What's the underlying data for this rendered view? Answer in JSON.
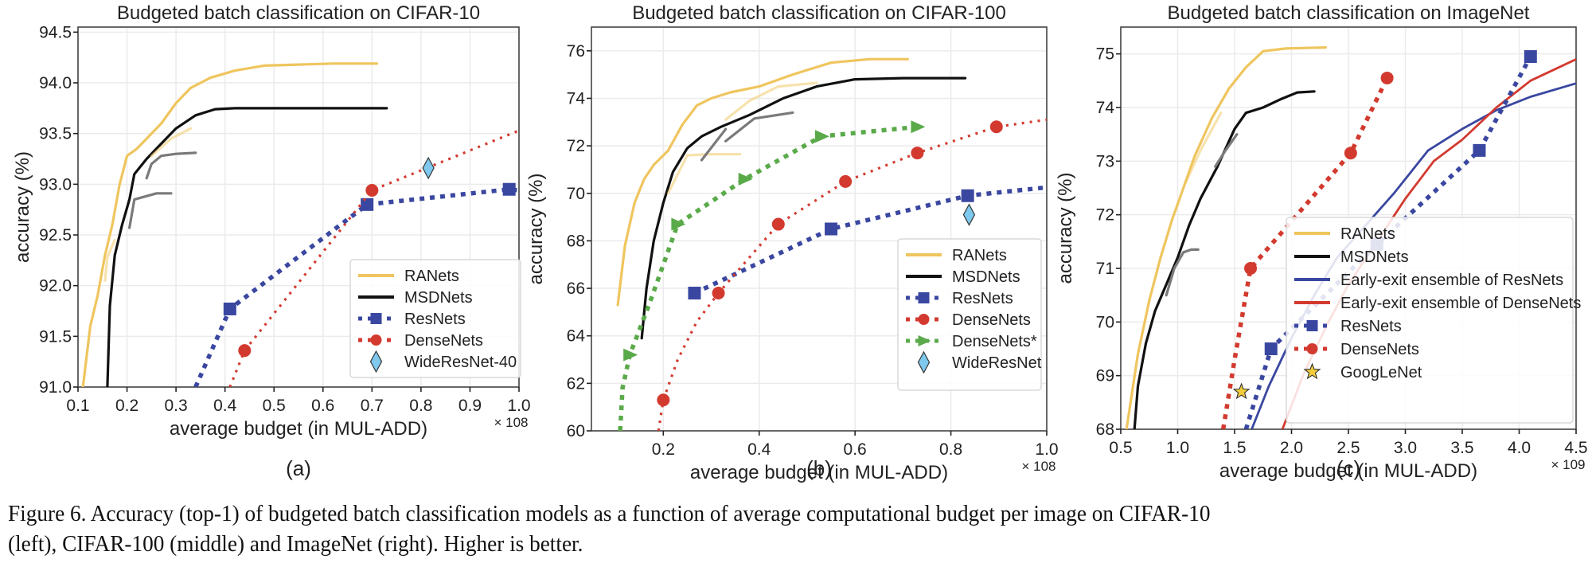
{
  "figure": {
    "caption_line1": "Figure 6. Accuracy (top-1) of budgeted batch classification models as a function of average computational budget per image on CIFAR-10",
    "caption_line2": "(left), CIFAR-100 (middle) and ImageNet (right). Higher is better."
  },
  "colors": {
    "ranets": "#efc55e",
    "msdnets": "#111111",
    "fragment_gray": "#7a7a7a",
    "resnets": "#3a47a0",
    "densenets": "#d33a2f",
    "densenets_star": "#5aaa4a",
    "wideresnet": "#7fc8ee",
    "googlenet": "#f2cc3a",
    "ee_resnets": "#3a47a0",
    "ee_densenets": "#d33a2f",
    "grid": "#ebebeb"
  },
  "chart_data": [
    {
      "type": "line",
      "panel_label": "(a)",
      "title": "Budgeted batch classification on CIFAR-10",
      "xlabel": "average budget (in MUL-ADD)",
      "xscale_note": "× 10^8",
      "ylabel": "accuracy (%)",
      "xlim": [
        0.1,
        1.0
      ],
      "ylim": [
        91.0,
        94.55
      ],
      "xticks": [
        0.1,
        0.2,
        0.3,
        0.4,
        0.5,
        0.6,
        0.7,
        0.8,
        0.9,
        1.0
      ],
      "xtick_labels": [
        "0.1",
        "0.2",
        "0.3",
        "0.4",
        "0.5",
        "0.6",
        "0.7",
        "0.8",
        "0.9",
        "1.0"
      ],
      "yticks": [
        91.0,
        91.5,
        92.0,
        92.5,
        93.0,
        93.5,
        94.0,
        94.5
      ],
      "ytick_labels": [
        "91.0",
        "91.5",
        "92.0",
        "92.5",
        "93.0",
        "93.5",
        "94.0",
        "94.5"
      ],
      "grid": true,
      "legend_position": "lower-right",
      "series": [
        {
          "name": "RANets",
          "style": "solid",
          "color_key": "ranets",
          "legend": true,
          "x": [
            0.11,
            0.125,
            0.14,
            0.155,
            0.17,
            0.185,
            0.2,
            0.22,
            0.24,
            0.27,
            0.3,
            0.33,
            0.37,
            0.42,
            0.48,
            0.55,
            0.62,
            0.71
          ],
          "y": [
            91.0,
            91.6,
            91.9,
            92.3,
            92.6,
            93.0,
            93.28,
            93.35,
            93.45,
            93.6,
            93.8,
            93.95,
            94.05,
            94.12,
            94.17,
            94.18,
            94.19,
            94.19
          ]
        },
        {
          "name": "MSDNets",
          "style": "solid",
          "color_key": "msdnets",
          "legend": true,
          "x": [
            0.16,
            0.165,
            0.175,
            0.19,
            0.205,
            0.215,
            0.24,
            0.27,
            0.3,
            0.34,
            0.38,
            0.42,
            0.48,
            0.55,
            0.65,
            0.73
          ],
          "y": [
            91.0,
            91.8,
            92.3,
            92.6,
            92.85,
            93.1,
            93.25,
            93.4,
            93.55,
            93.68,
            93.74,
            93.75,
            93.75,
            93.75,
            93.75,
            93.75
          ]
        },
        {
          "name": "RANets-sub1",
          "style": "solid",
          "color_key": "ranets",
          "legend": false,
          "faded": true,
          "x": [
            0.155,
            0.16,
            0.175
          ],
          "y": [
            92.05,
            92.28,
            92.45
          ]
        },
        {
          "name": "RANets-sub2",
          "style": "solid",
          "color_key": "ranets",
          "legend": false,
          "faded": true,
          "x": [
            0.25,
            0.29,
            0.33
          ],
          "y": [
            93.28,
            93.45,
            93.55
          ]
        },
        {
          "name": "MSDNets-sub1",
          "style": "solid",
          "color_key": "fragment_gray",
          "legend": false,
          "x": [
            0.205,
            0.215,
            0.23,
            0.26,
            0.29
          ],
          "y": [
            92.57,
            92.85,
            92.87,
            92.91,
            92.91
          ]
        },
        {
          "name": "MSDNets-sub2",
          "style": "solid",
          "color_key": "fragment_gray",
          "legend": false,
          "x": [
            0.24,
            0.25,
            0.27,
            0.3,
            0.34
          ],
          "y": [
            93.06,
            93.2,
            93.28,
            93.3,
            93.31
          ]
        },
        {
          "name": "ResNets",
          "style": "dotted-square",
          "color_key": "resnets",
          "legend": true,
          "x": [
            0.34,
            0.41,
            0.69,
            0.98,
            1.0
          ],
          "y": [
            91.0,
            91.77,
            92.8,
            92.95,
            92.94
          ],
          "markers_at": [
            1,
            2,
            3
          ]
        },
        {
          "name": "DenseNets",
          "style": "dotted-circle",
          "color_key": "densenets",
          "legend": true,
          "x": [
            0.41,
            0.44,
            0.7,
            1.0
          ],
          "y": [
            91.0,
            91.36,
            92.94,
            93.53
          ],
          "markers_at": [
            1,
            2
          ]
        },
        {
          "name": "WideResNet-40",
          "style": "marker-diamond",
          "color_key": "wideresnet",
          "legend": true,
          "x": [
            0.815
          ],
          "y": [
            93.16
          ]
        }
      ]
    },
    {
      "type": "line",
      "panel_label": "(b)",
      "title": "Budgeted batch classification on CIFAR-100",
      "xlabel": "average budget (in MUL-ADD)",
      "xscale_note": "× 10^8",
      "ylabel": "accuracy (%)",
      "xlim": [
        0.05,
        1.0
      ],
      "ylim": [
        60,
        77
      ],
      "xticks": [
        0.2,
        0.4,
        0.6,
        0.8,
        1.0
      ],
      "xtick_labels": [
        "0.2",
        "0.4",
        "0.6",
        "0.8",
        "1.0"
      ],
      "yticks": [
        60,
        62,
        64,
        66,
        68,
        70,
        72,
        74,
        76
      ],
      "ytick_labels": [
        "60",
        "62",
        "64",
        "66",
        "68",
        "70",
        "72",
        "74",
        "76"
      ],
      "grid": true,
      "legend_position": "lower-right",
      "series": [
        {
          "name": "RANets",
          "style": "solid",
          "color_key": "ranets",
          "legend": true,
          "x": [
            0.105,
            0.12,
            0.14,
            0.16,
            0.18,
            0.21,
            0.24,
            0.27,
            0.3,
            0.34,
            0.4,
            0.47,
            0.55,
            0.63,
            0.71
          ],
          "y": [
            65.3,
            67.8,
            69.6,
            70.6,
            71.2,
            71.8,
            72.9,
            73.7,
            74.0,
            74.25,
            74.5,
            75.0,
            75.5,
            75.65,
            75.65
          ]
        },
        {
          "name": "MSDNets",
          "style": "solid",
          "color_key": "msdnets",
          "legend": true,
          "x": [
            0.155,
            0.165,
            0.18,
            0.2,
            0.22,
            0.25,
            0.28,
            0.32,
            0.38,
            0.45,
            0.52,
            0.6,
            0.7,
            0.83
          ],
          "y": [
            63.9,
            66.0,
            68.0,
            69.6,
            70.9,
            71.9,
            72.4,
            72.8,
            73.3,
            74.0,
            74.5,
            74.8,
            74.85,
            74.85
          ]
        },
        {
          "name": "RANets-sub1",
          "style": "solid",
          "color_key": "ranets",
          "legend": false,
          "faded": true,
          "x": [
            0.21,
            0.25,
            0.3,
            0.36
          ],
          "y": [
            70.0,
            71.6,
            71.65,
            71.65
          ]
        },
        {
          "name": "RANets-sub2",
          "style": "solid",
          "color_key": "ranets",
          "legend": false,
          "faded": true,
          "x": [
            0.33,
            0.38,
            0.44,
            0.52
          ],
          "y": [
            73.1,
            73.9,
            74.5,
            74.65
          ]
        },
        {
          "name": "MSDNets-sub1",
          "style": "solid",
          "color_key": "fragment_gray",
          "legend": false,
          "x": [
            0.28,
            0.33
          ],
          "y": [
            71.4,
            72.7
          ]
        },
        {
          "name": "MSDNets-sub2",
          "style": "solid",
          "color_key": "fragment_gray",
          "legend": false,
          "x": [
            0.33,
            0.39,
            0.47
          ],
          "y": [
            72.2,
            73.15,
            73.4
          ]
        },
        {
          "name": "ResNets",
          "style": "dotted-square",
          "color_key": "resnets",
          "legend": true,
          "x": [
            0.265,
            0.35,
            0.55,
            0.835,
            1.0
          ],
          "y": [
            65.8,
            66.6,
            68.5,
            69.9,
            70.25
          ],
          "markers_at": [
            0,
            2,
            3
          ]
        },
        {
          "name": "DenseNets",
          "style": "dotted-circle",
          "color_key": "densenets",
          "legend": true,
          "x": [
            0.19,
            0.2,
            0.23,
            0.27,
            0.315,
            0.44,
            0.58,
            0.73,
            0.895,
            1.0
          ],
          "y": [
            60.0,
            61.3,
            63.0,
            64.6,
            65.8,
            68.7,
            70.5,
            71.7,
            72.8,
            73.1
          ],
          "markers_at": [
            1,
            4,
            5,
            6,
            7,
            8
          ]
        },
        {
          "name": "DenseNets*",
          "style": "dotted-triangle",
          "color_key": "densenets_star",
          "legend": true,
          "x": [
            0.11,
            0.115,
            0.13,
            0.17,
            0.23,
            0.37,
            0.53,
            0.73
          ],
          "y": [
            60.0,
            61.8,
            63.2,
            65.3,
            68.7,
            70.6,
            72.4,
            72.8
          ],
          "markers_at": [
            2,
            4,
            5,
            6,
            7
          ]
        },
        {
          "name": "WideResNet",
          "style": "marker-diamond",
          "color_key": "wideresnet",
          "legend": true,
          "x": [
            0.838
          ],
          "y": [
            69.1
          ]
        }
      ]
    },
    {
      "type": "line",
      "panel_label": "(c)",
      "title": "Budgeted batch classification on ImageNet",
      "xlabel": "average budget (in MUL-ADD)",
      "xscale_note": "× 10^9",
      "ylabel": "accuracy (%)",
      "xlim": [
        0.5,
        4.5
      ],
      "ylim": [
        68,
        75.5
      ],
      "xticks": [
        0.5,
        1.0,
        1.5,
        2.0,
        2.5,
        3.0,
        3.5,
        4.0,
        4.5
      ],
      "xtick_labels": [
        "0.5",
        "1.0",
        "1.5",
        "2.0",
        "2.5",
        "3.0",
        "3.5",
        "4.0",
        "4.5"
      ],
      "yticks": [
        68,
        69,
        70,
        71,
        72,
        73,
        74,
        75
      ],
      "ytick_labels": [
        "68",
        "69",
        "70",
        "71",
        "72",
        "73",
        "74",
        "75"
      ],
      "grid": true,
      "legend_position": "lower-right",
      "series": [
        {
          "name": "RANets",
          "style": "solid",
          "color_key": "ranets",
          "legend": true,
          "x": [
            0.55,
            0.65,
            0.75,
            0.85,
            0.95,
            1.05,
            1.15,
            1.3,
            1.45,
            1.6,
            1.75,
            1.95,
            2.3
          ],
          "y": [
            68.0,
            69.4,
            70.4,
            71.2,
            71.9,
            72.5,
            73.1,
            73.8,
            74.35,
            74.75,
            75.05,
            75.1,
            75.12
          ]
        },
        {
          "name": "MSDNets",
          "style": "solid",
          "color_key": "msdnets",
          "legend": true,
          "x": [
            0.62,
            0.65,
            0.72,
            0.8,
            0.9,
            1.0,
            1.1,
            1.2,
            1.35,
            1.5,
            1.6,
            1.75,
            1.9,
            2.05,
            2.2
          ],
          "y": [
            68.0,
            68.8,
            69.6,
            70.2,
            70.7,
            71.2,
            71.8,
            72.3,
            72.9,
            73.6,
            73.9,
            74.0,
            74.15,
            74.28,
            74.3
          ]
        },
        {
          "name": "RANets-sub1",
          "style": "solid",
          "color_key": "ranets",
          "legend": false,
          "faded": true,
          "x": [
            1.07,
            1.2,
            1.38
          ],
          "y": [
            72.6,
            73.2,
            73.9
          ]
        },
        {
          "name": "MSDNets-sub1",
          "style": "solid",
          "color_key": "fragment_gray",
          "legend": false,
          "x": [
            0.9,
            0.97,
            1.05,
            1.12,
            1.18
          ],
          "y": [
            70.5,
            71.0,
            71.3,
            71.35,
            71.35
          ]
        },
        {
          "name": "MSDNets-sub2",
          "style": "solid",
          "color_key": "fragment_gray",
          "legend": false,
          "x": [
            1.33,
            1.42,
            1.52
          ],
          "y": [
            72.9,
            73.2,
            73.5
          ]
        },
        {
          "name": "Early-exit ensemble of ResNets",
          "style": "solid-thin",
          "color_key": "ee_resnets",
          "legend": true,
          "x": [
            1.65,
            1.8,
            2.0,
            2.2,
            2.4,
            2.65,
            2.9,
            3.2,
            3.5,
            3.8,
            4.1,
            4.5
          ],
          "y": [
            68.0,
            68.8,
            69.7,
            70.5,
            71.2,
            71.8,
            72.4,
            73.2,
            73.6,
            73.95,
            74.2,
            74.45
          ]
        },
        {
          "name": "Early-exit ensemble of DenseNets",
          "style": "solid-thin",
          "color_key": "ee_densenets",
          "legend": true,
          "x": [
            1.92,
            2.1,
            2.3,
            2.5,
            2.75,
            3.0,
            3.25,
            3.5,
            3.8,
            4.1,
            4.5
          ],
          "y": [
            68.0,
            69.0,
            69.9,
            70.7,
            71.5,
            72.3,
            73.0,
            73.4,
            74.0,
            74.5,
            74.9
          ]
        },
        {
          "name": "ResNets",
          "style": "dotted-square",
          "color_key": "resnets",
          "legend": true,
          "x": [
            1.6,
            1.82,
            2.75,
            3.65,
            4.1
          ],
          "y": [
            68.0,
            69.5,
            71.45,
            73.2,
            74.95
          ],
          "markers_at": [
            1,
            2,
            3,
            4
          ]
        },
        {
          "name": "DenseNets",
          "style": "dotted-circle",
          "color_key": "densenets",
          "legend": true,
          "x": [
            1.4,
            1.5,
            1.64,
            2.52,
            2.84
          ],
          "y": [
            68.0,
            69.3,
            71.0,
            73.15,
            74.55
          ],
          "markers_at": [
            2,
            3,
            4
          ]
        },
        {
          "name": "GoogLeNet",
          "style": "marker-star",
          "color_key": "googlenet",
          "legend": true,
          "x": [
            1.56
          ],
          "y": [
            68.7
          ]
        }
      ]
    }
  ]
}
